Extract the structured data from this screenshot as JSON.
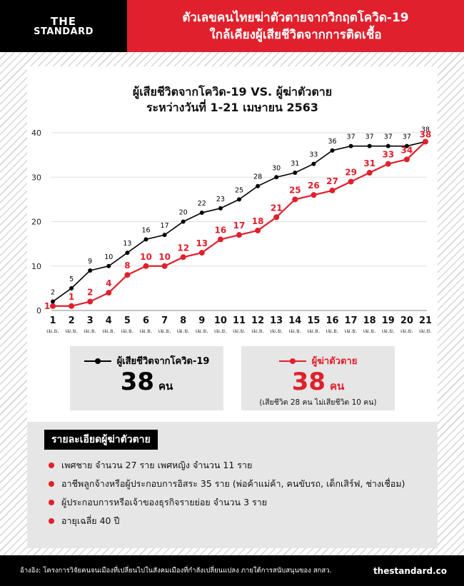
{
  "header": {
    "logo_line1": "THE",
    "logo_line2": "STANDARD",
    "headline_line1": "ตัวเลขคนไทยฆ่าตัวตายจากวิกฤตโควิด-19",
    "headline_line2": "ใกล้เคียงผู้เสียชีวิตจากการติดเชื้อ"
  },
  "colors": {
    "brand_red": "#e0202c",
    "black": "#000000",
    "panel_gray": "#e6e6e6"
  },
  "chart_data": {
    "type": "line",
    "title_line1": "ผู้เสียชีวิตจากโควิด-19 VS. ผู้ฆ่าตัวตาย",
    "title_line2": "ระหว่างวันที่ 1-21 เมษายน 2563",
    "x": [
      "1",
      "2",
      "3",
      "4",
      "5",
      "6",
      "7",
      "8",
      "9",
      "10",
      "11",
      "12",
      "13",
      "14",
      "15",
      "16",
      "17",
      "18",
      "19",
      "20",
      "21"
    ],
    "x_unit": "เม.ย.",
    "ylim": [
      0,
      40
    ],
    "yticks": [
      0,
      10,
      20,
      30,
      40
    ],
    "grid": "horizontal",
    "series": [
      {
        "name": "ผู้เสียชีวิตจากโควิด-19",
        "color": "#000000",
        "values": [
          2,
          5,
          9,
          10,
          13,
          16,
          17,
          20,
          22,
          23,
          25,
          28,
          30,
          31,
          33,
          36,
          37,
          37,
          37,
          37,
          38
        ]
      },
      {
        "name": "ผู้ฆ่าตัวตาย",
        "color": "#e0202c",
        "values": [
          1,
          1,
          2,
          4,
          8,
          10,
          10,
          12,
          13,
          16,
          17,
          18,
          21,
          25,
          26,
          27,
          29,
          31,
          33,
          34,
          38
        ]
      }
    ]
  },
  "stats": {
    "covid": {
      "legend": "ผู้เสียชีวิตจากโควิด-19",
      "value": "38",
      "unit": "คน"
    },
    "suicide": {
      "legend": "ผู้ฆ่าตัวตาย",
      "value": "38",
      "unit": "คน",
      "note": "(เสียชีวิต 28 คน ไม่เสียชีวิต 10 คน)"
    }
  },
  "details": {
    "title": "รายละเอียดผู้ฆ่าตัวตาย",
    "items": [
      "เพศชาย จำนวน 27 ราย เพศหญิง จำนวน 11 ราย",
      "อาชีพลูกจ้างหรือผู้ประกอบการอิสระ 35 ราย (พ่อค้าแม่ค้า, คนขับรถ, เด็กเสิร์ฟ, ช่างเชื่อม)",
      "ผู้ประกอบการหรือเจ้าของธุรกิจรายย่อย จำนวน 3 ราย",
      "อายุเฉลี่ย 40 ปี"
    ]
  },
  "footer": {
    "source": "อ้างอิง: โครงการวิจัยคนจนเมืองที่เปลี่ยนไปในสังคมเมืองที่กำลังเปลี่ยนแปลง ภายใต้การสนับสนุนของ สกสว.",
    "site": "thestandard.co"
  }
}
